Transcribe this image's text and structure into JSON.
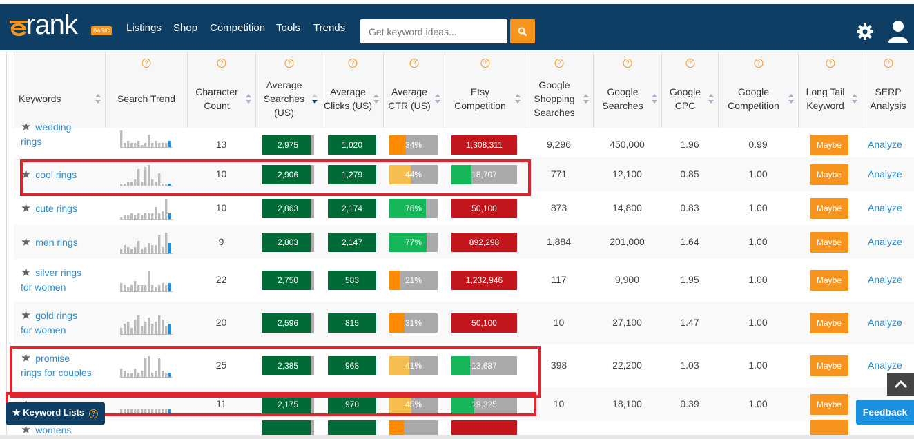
{
  "brand": {
    "logo_text": "rank",
    "badge": "BASIC"
  },
  "nav": {
    "items": [
      "Listings",
      "Shop",
      "Competition",
      "Tools",
      "Trends"
    ]
  },
  "search": {
    "placeholder": "Get keyword ideas..."
  },
  "icons": {
    "search": "search-icon",
    "settings": "gear-icon",
    "user": "user-icon",
    "help": "question-circle-icon",
    "star": "star-icon",
    "sort": "sort-arrows-icon"
  },
  "colors": {
    "navbar": "#0e3e63",
    "accent": "#f7941d",
    "green_dark": "#006b36",
    "green_light": "#16b65a",
    "red": "#c3161c",
    "yellow": "#f5bd4f",
    "orange": "#fd8a00",
    "gray": "#aaaaaa",
    "link": "#2b8fd0",
    "highlight_box": "#e0252e"
  },
  "table": {
    "help_glyph": "?",
    "headers": [
      {
        "label": "Keywords"
      },
      {
        "label": "Search Trend"
      },
      {
        "label": "Character Count"
      },
      {
        "label": "Average Searches (US)",
        "sorted": "desc"
      },
      {
        "label": "Average Clicks (US)"
      },
      {
        "label": "Average CTR (US)"
      },
      {
        "label": "Etsy Competition"
      },
      {
        "label": "Google Shopping Searches"
      },
      {
        "label": "Google Searches"
      },
      {
        "label": "Google CPC"
      },
      {
        "label": "Google Competition"
      },
      {
        "label": "Long Tail Keyword"
      },
      {
        "label": "SERP Analysis"
      }
    ],
    "rows": [
      {
        "kw1": "wedding",
        "kw2": "rings",
        "chars": "13",
        "searches": "2,975",
        "searches_fill": 0.94,
        "clicks": "1,020",
        "clicks_fill": 1.0,
        "ctr": "34%",
        "ctr_fill": 0.34,
        "ctr_color": "orange",
        "etsy": "1,308,311",
        "etsy_color": "red",
        "etsy_fill": 1.0,
        "gshop": "9,296",
        "gsearch": "450,000",
        "cpc": "1.96",
        "gcomp": "0.99",
        "long_tail": "Maybe",
        "serp": "Analyze",
        "trend": [
          0.8,
          0.2,
          0.3,
          0.2,
          0.2,
          0.3,
          0.1,
          0.2,
          0.6,
          0.2,
          0.3,
          0.2,
          0.2,
          0.2,
          0.3
        ]
      },
      {
        "kw1": "cool rings",
        "kw2": "",
        "chars": "10",
        "searches": "2,906",
        "searches_fill": 0.94,
        "clicks": "1,279",
        "clicks_fill": 1.0,
        "ctr": "44%",
        "ctr_fill": 0.44,
        "ctr_color": "yellow",
        "etsy": "18,707",
        "etsy_color": "green",
        "etsy_fill": 0.3,
        "gshop": "771",
        "gsearch": "12,100",
        "cpc": "0.85",
        "gcomp": "1.00",
        "long_tail": "Maybe",
        "serp": "Analyze",
        "trend": [
          0.1,
          0.1,
          0.2,
          0.2,
          0.3,
          0.8,
          0.2,
          0.9,
          1.0,
          0.3,
          0.2,
          0.6,
          0.1,
          0.1,
          0.1
        ]
      },
      {
        "kw1": "cute rings",
        "kw2": "",
        "chars": "10",
        "searches": "2,863",
        "searches_fill": 0.94,
        "clicks": "2,174",
        "clicks_fill": 1.0,
        "ctr": "76%",
        "ctr_fill": 0.76,
        "ctr_color": "green",
        "etsy": "50,100",
        "etsy_color": "red",
        "etsy_fill": 1.0,
        "gshop": "873",
        "gsearch": "14,800",
        "cpc": "0.83",
        "gcomp": "1.00",
        "long_tail": "Maybe",
        "serp": "Analyze",
        "trend": [
          0.1,
          0.2,
          0.2,
          0.3,
          0.2,
          0.3,
          0.2,
          0.3,
          0.3,
          0.3,
          0.6,
          0.3,
          0.4,
          1.0,
          0.3
        ]
      },
      {
        "kw1": "men rings",
        "kw2": "",
        "chars": "9",
        "searches": "2,803",
        "searches_fill": 0.94,
        "clicks": "2,147",
        "clicks_fill": 1.0,
        "ctr": "77%",
        "ctr_fill": 0.77,
        "ctr_color": "green",
        "etsy": "892,298",
        "etsy_color": "red",
        "etsy_fill": 1.0,
        "gshop": "1,884",
        "gsearch": "201,000",
        "cpc": "1.64",
        "gcomp": "1.00",
        "long_tail": "Maybe",
        "serp": "Analyze",
        "trend": [
          0.2,
          0.4,
          0.3,
          0.2,
          0.3,
          0.6,
          0.2,
          0.3,
          0.5,
          0.4,
          0.4,
          0.9,
          0.3,
          1.0,
          0.5
        ]
      },
      {
        "kw1": "silver rings",
        "kw2": "for women",
        "chars": "22",
        "searches": "2,750",
        "searches_fill": 0.94,
        "clicks": "583",
        "clicks_fill": 1.0,
        "ctr": "21%",
        "ctr_fill": 0.21,
        "ctr_color": "orange",
        "etsy": "1,232,946",
        "etsy_color": "red",
        "etsy_fill": 1.0,
        "gshop": "117",
        "gsearch": "9,900",
        "cpc": "1.95",
        "gcomp": "1.00",
        "long_tail": "Maybe",
        "serp": "Analyze",
        "trend": [
          0.4,
          0.3,
          0.2,
          0.3,
          0.5,
          0.3,
          0.3,
          0.3,
          1.0,
          0.3,
          0.2,
          0.3,
          0.4,
          0.3,
          0.4
        ]
      },
      {
        "kw1": "gold rings",
        "kw2": "for women",
        "chars": "20",
        "searches": "2,596",
        "searches_fill": 0.94,
        "clicks": "815",
        "clicks_fill": 1.0,
        "ctr": "31%",
        "ctr_fill": 0.31,
        "ctr_color": "orange",
        "etsy": "50,100",
        "etsy_color": "red",
        "etsy_fill": 1.0,
        "gshop": "10",
        "gsearch": "27,100",
        "cpc": "1.47",
        "gcomp": "1.00",
        "long_tail": "Maybe",
        "serp": "Analyze",
        "trend": [
          0.3,
          0.5,
          0.6,
          0.3,
          0.7,
          0.9,
          0.4,
          0.6,
          0.8,
          0.5,
          0.6,
          0.9,
          0.7,
          0.4,
          0.5
        ]
      },
      {
        "kw1": "promise",
        "kw2": "rings for couples",
        "chars": "25",
        "searches": "2,385",
        "searches_fill": 0.94,
        "clicks": "968",
        "clicks_fill": 1.0,
        "ctr": "41%",
        "ctr_fill": 0.41,
        "ctr_color": "yellow",
        "etsy": "13,687",
        "etsy_color": "green",
        "etsy_fill": 0.28,
        "gshop": "398",
        "gsearch": "22,200",
        "cpc": "1.03",
        "gcomp": "1.00",
        "long_tail": "Maybe",
        "serp": "Analyze",
        "trend": [
          0.4,
          0.3,
          0.2,
          0.2,
          0.4,
          0.2,
          0.3,
          0.9,
          1.0,
          0.2,
          0.3,
          0.9,
          0.3,
          0.2,
          0.2
        ]
      },
      {
        "kw1": "",
        "kw2": "",
        "chars": "11",
        "searches": "2,175",
        "searches_fill": 0.94,
        "clicks": "970",
        "clicks_fill": 1.0,
        "ctr": "45%",
        "ctr_fill": 0.45,
        "ctr_color": "yellow",
        "etsy": "19,325",
        "etsy_color": "green",
        "etsy_fill": 0.35,
        "gshop": "10",
        "gsearch": "18,100",
        "cpc": "0.39",
        "gcomp": "1.00",
        "long_tail": "Maybe",
        "serp": "",
        "trend": [
          0.3,
          0.3,
          0.3,
          0.3,
          0.3,
          0.3,
          0.3,
          0.3,
          0.3,
          0.3,
          0.3,
          0.3,
          0.3,
          0.3,
          0.3
        ]
      },
      {
        "kw1": "womens",
        "kw2": "",
        "chars": "",
        "searches": "",
        "searches_fill": 0.94,
        "clicks": "",
        "clicks_fill": 1.0,
        "ctr": "",
        "ctr_fill": 0.3,
        "ctr_color": "orange",
        "etsy": "",
        "etsy_color": "red",
        "etsy_fill": 1.0,
        "gshop": "",
        "gsearch": "",
        "cpc": "",
        "gcomp": "",
        "long_tail": "",
        "serp": "",
        "trend": [
          0.3,
          0.3,
          0.3,
          0.3,
          0.3,
          0.3,
          0.3,
          0.3,
          0.3,
          0.3,
          0.3,
          0.3,
          0.3,
          0.3,
          0.3
        ]
      }
    ]
  },
  "keyword_lists_button": "Keyword Lists",
  "feedback_button": "Feedback"
}
